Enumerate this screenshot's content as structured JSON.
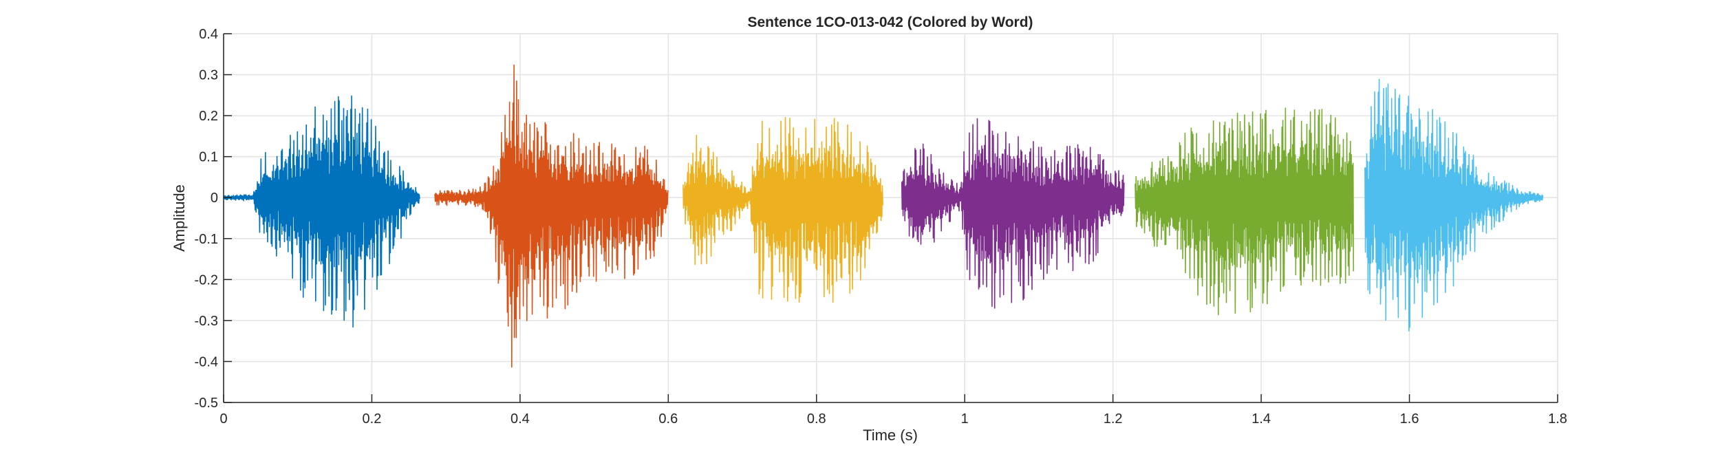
{
  "chart_data": {
    "type": "line",
    "title": "Sentence 1CO-013-042 (Colored by Word)",
    "xlabel": "Time (s)",
    "ylabel": "Amplitude",
    "xlim": [
      0,
      1.8
    ],
    "ylim": [
      -0.5,
      0.4
    ],
    "xticks": [
      "0",
      "0.2",
      "0.4",
      "0.6",
      "0.8",
      "1",
      "1.2",
      "1.4",
      "1.6",
      "1.8"
    ],
    "xtick_values": [
      0,
      0.2,
      0.4,
      0.6,
      0.8,
      1.0,
      1.2,
      1.4,
      1.6,
      1.8
    ],
    "yticks": [
      "0.4",
      "0.3",
      "0.2",
      "0.1",
      "0",
      "-0.1",
      "-0.2",
      "-0.3",
      "-0.4",
      "-0.5"
    ],
    "ytick_values": [
      0.4,
      0.3,
      0.2,
      0.1,
      0,
      -0.1,
      -0.2,
      -0.3,
      -0.4,
      -0.5
    ],
    "grid": true,
    "series": [
      {
        "color": "#0072BD",
        "start": 0,
        "end": 0.265,
        "envelope": [
          [
            0,
            0.005,
            -0.005
          ],
          [
            0.04,
            0.01,
            -0.01
          ],
          [
            0.05,
            0.1,
            -0.1
          ],
          [
            0.08,
            0.15,
            -0.16
          ],
          [
            0.1,
            0.2,
            -0.24
          ],
          [
            0.13,
            0.24,
            -0.27
          ],
          [
            0.17,
            0.3,
            -0.33
          ],
          [
            0.2,
            0.2,
            -0.25
          ],
          [
            0.23,
            0.1,
            -0.15
          ],
          [
            0.25,
            0.05,
            -0.05
          ],
          [
            0.265,
            0.01,
            -0.01
          ]
        ]
      },
      {
        "color": "#D95319",
        "start": 0.285,
        "end": 0.6,
        "envelope": [
          [
            0.285,
            0.02,
            -0.02
          ],
          [
            0.33,
            0.02,
            -0.02
          ],
          [
            0.35,
            0.03,
            -0.03
          ],
          [
            0.37,
            0.1,
            -0.2
          ],
          [
            0.39,
            0.34,
            -0.46
          ],
          [
            0.41,
            0.2,
            -0.35
          ],
          [
            0.45,
            0.19,
            -0.3
          ],
          [
            0.5,
            0.14,
            -0.22
          ],
          [
            0.57,
            0.13,
            -0.2
          ],
          [
            0.59,
            0.08,
            -0.1
          ],
          [
            0.6,
            0.02,
            -0.02
          ]
        ]
      },
      {
        "color": "#EDB120",
        "start": 0.62,
        "end": 0.89,
        "envelope": [
          [
            0.62,
            0.05,
            -0.05
          ],
          [
            0.64,
            0.17,
            -0.2
          ],
          [
            0.67,
            0.1,
            -0.12
          ],
          [
            0.71,
            0.02,
            -0.02
          ],
          [
            0.72,
            0.19,
            -0.25
          ],
          [
            0.8,
            0.21,
            -0.28
          ],
          [
            0.86,
            0.17,
            -0.22
          ],
          [
            0.89,
            0.05,
            -0.05
          ]
        ]
      },
      {
        "color": "#7E2F8E",
        "start": 0.915,
        "end": 1.215,
        "envelope": [
          [
            0.915,
            0.07,
            -0.07
          ],
          [
            0.94,
            0.15,
            -0.16
          ],
          [
            0.97,
            0.07,
            -0.08
          ],
          [
            0.995,
            0.03,
            -0.03
          ],
          [
            1.0,
            0.16,
            -0.17
          ],
          [
            1.02,
            0.2,
            -0.28
          ],
          [
            1.07,
            0.17,
            -0.27
          ],
          [
            1.11,
            0.12,
            -0.2
          ],
          [
            1.17,
            0.14,
            -0.18
          ],
          [
            1.2,
            0.08,
            -0.06
          ],
          [
            1.215,
            0.07,
            -0.06
          ]
        ]
      },
      {
        "color": "#77AC30",
        "start": 1.23,
        "end": 1.525,
        "envelope": [
          [
            1.23,
            0.07,
            -0.07
          ],
          [
            1.27,
            0.11,
            -0.15
          ],
          [
            1.32,
            0.2,
            -0.25
          ],
          [
            1.35,
            0.23,
            -0.3
          ],
          [
            1.4,
            0.22,
            -0.27
          ],
          [
            1.5,
            0.22,
            -0.22
          ],
          [
            1.525,
            0.2,
            -0.2
          ]
        ]
      },
      {
        "color": "#4DBEEE",
        "start": 1.54,
        "end": 1.78,
        "envelope": [
          [
            1.54,
            0.13,
            -0.23
          ],
          [
            1.555,
            0.3,
            -0.32
          ],
          [
            1.6,
            0.27,
            -0.35
          ],
          [
            1.66,
            0.17,
            -0.22
          ],
          [
            1.7,
            0.07,
            -0.1
          ],
          [
            1.75,
            0.02,
            -0.02
          ],
          [
            1.78,
            0.01,
            -0.01
          ]
        ]
      }
    ]
  }
}
